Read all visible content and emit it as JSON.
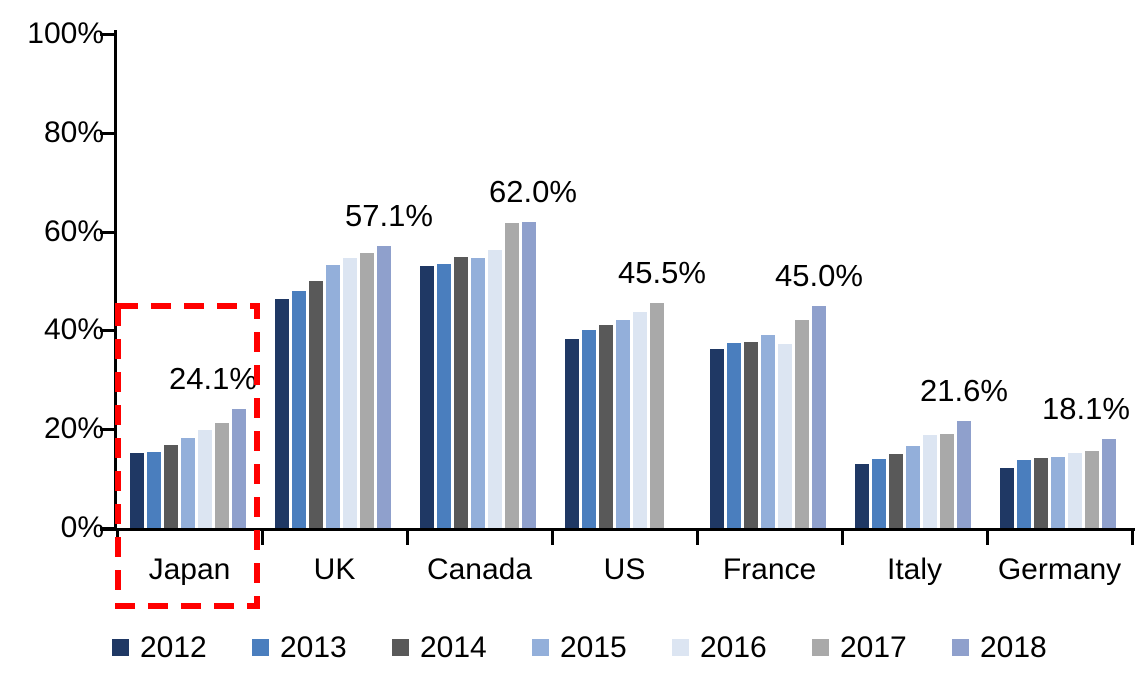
{
  "chart_data": {
    "type": "bar",
    "title": "",
    "unit": "%",
    "grid": "off",
    "legend_position": "bottom",
    "ylim": [
      0,
      100
    ],
    "yticks": [
      {
        "value": 100,
        "label": "100%"
      },
      {
        "value": 80,
        "label": "80%"
      },
      {
        "value": 60,
        "label": "60%"
      },
      {
        "value": 40,
        "label": "40%"
      },
      {
        "value": 20,
        "label": "20%"
      },
      {
        "value": 0,
        "label": "0%"
      }
    ],
    "categories": [
      "Japan",
      "UK",
      "Canada",
      "US",
      "France",
      "Italy",
      "Germany"
    ],
    "series": [
      {
        "name": "2012",
        "color": "#1F3864",
        "values": [
          15.1,
          46.4,
          53.0,
          38.2,
          36.2,
          13.0,
          12.2
        ]
      },
      {
        "name": "2013",
        "color": "#4A7EBE",
        "values": [
          15.3,
          48.0,
          53.4,
          40.1,
          37.5,
          13.9,
          13.8
        ]
      },
      {
        "name": "2014",
        "color": "#595959",
        "values": [
          16.9,
          50.1,
          54.9,
          41.0,
          37.6,
          15.0,
          14.1
        ]
      },
      {
        "name": "2015",
        "color": "#93AFDA",
        "values": [
          18.2,
          53.3,
          54.7,
          42.1,
          39.1,
          16.5,
          14.4
        ]
      },
      {
        "name": "2016",
        "color": "#DCE5F2",
        "values": [
          19.8,
          54.7,
          56.3,
          43.7,
          37.3,
          18.8,
          15.1
        ]
      },
      {
        "name": "2017",
        "color": "#A9A9A9",
        "values": [
          21.3,
          55.7,
          61.7,
          45.5,
          42.1,
          19.0,
          15.6
        ]
      },
      {
        "name": "2018",
        "color": "#8FA0CC",
        "values": [
          24.1,
          57.1,
          62.0,
          null,
          45.0,
          21.6,
          18.1
        ]
      }
    ],
    "value_labels": [
      {
        "category": "Japan",
        "year": "2018",
        "text": "24.1%"
      },
      {
        "category": "UK",
        "year": "2018",
        "text": "57.1%"
      },
      {
        "category": "Canada",
        "year": "2018",
        "text": "62.0%"
      },
      {
        "category": "US",
        "year": "2017",
        "text": "45.5%"
      },
      {
        "category": "France",
        "year": "2018",
        "text": "45.0%"
      },
      {
        "category": "Italy",
        "year": "2018",
        "text": "21.6%"
      },
      {
        "category": "Germany",
        "year": "2018",
        "text": "18.1%"
      }
    ],
    "highlight_box": {
      "category": "Japan",
      "style": "dashed-rectangle",
      "color": "#FF0000"
    }
  },
  "colors": {
    "axis": "#000000",
    "text": "#000000",
    "background": "#FFFFFF",
    "highlight": "#FF0000"
  }
}
